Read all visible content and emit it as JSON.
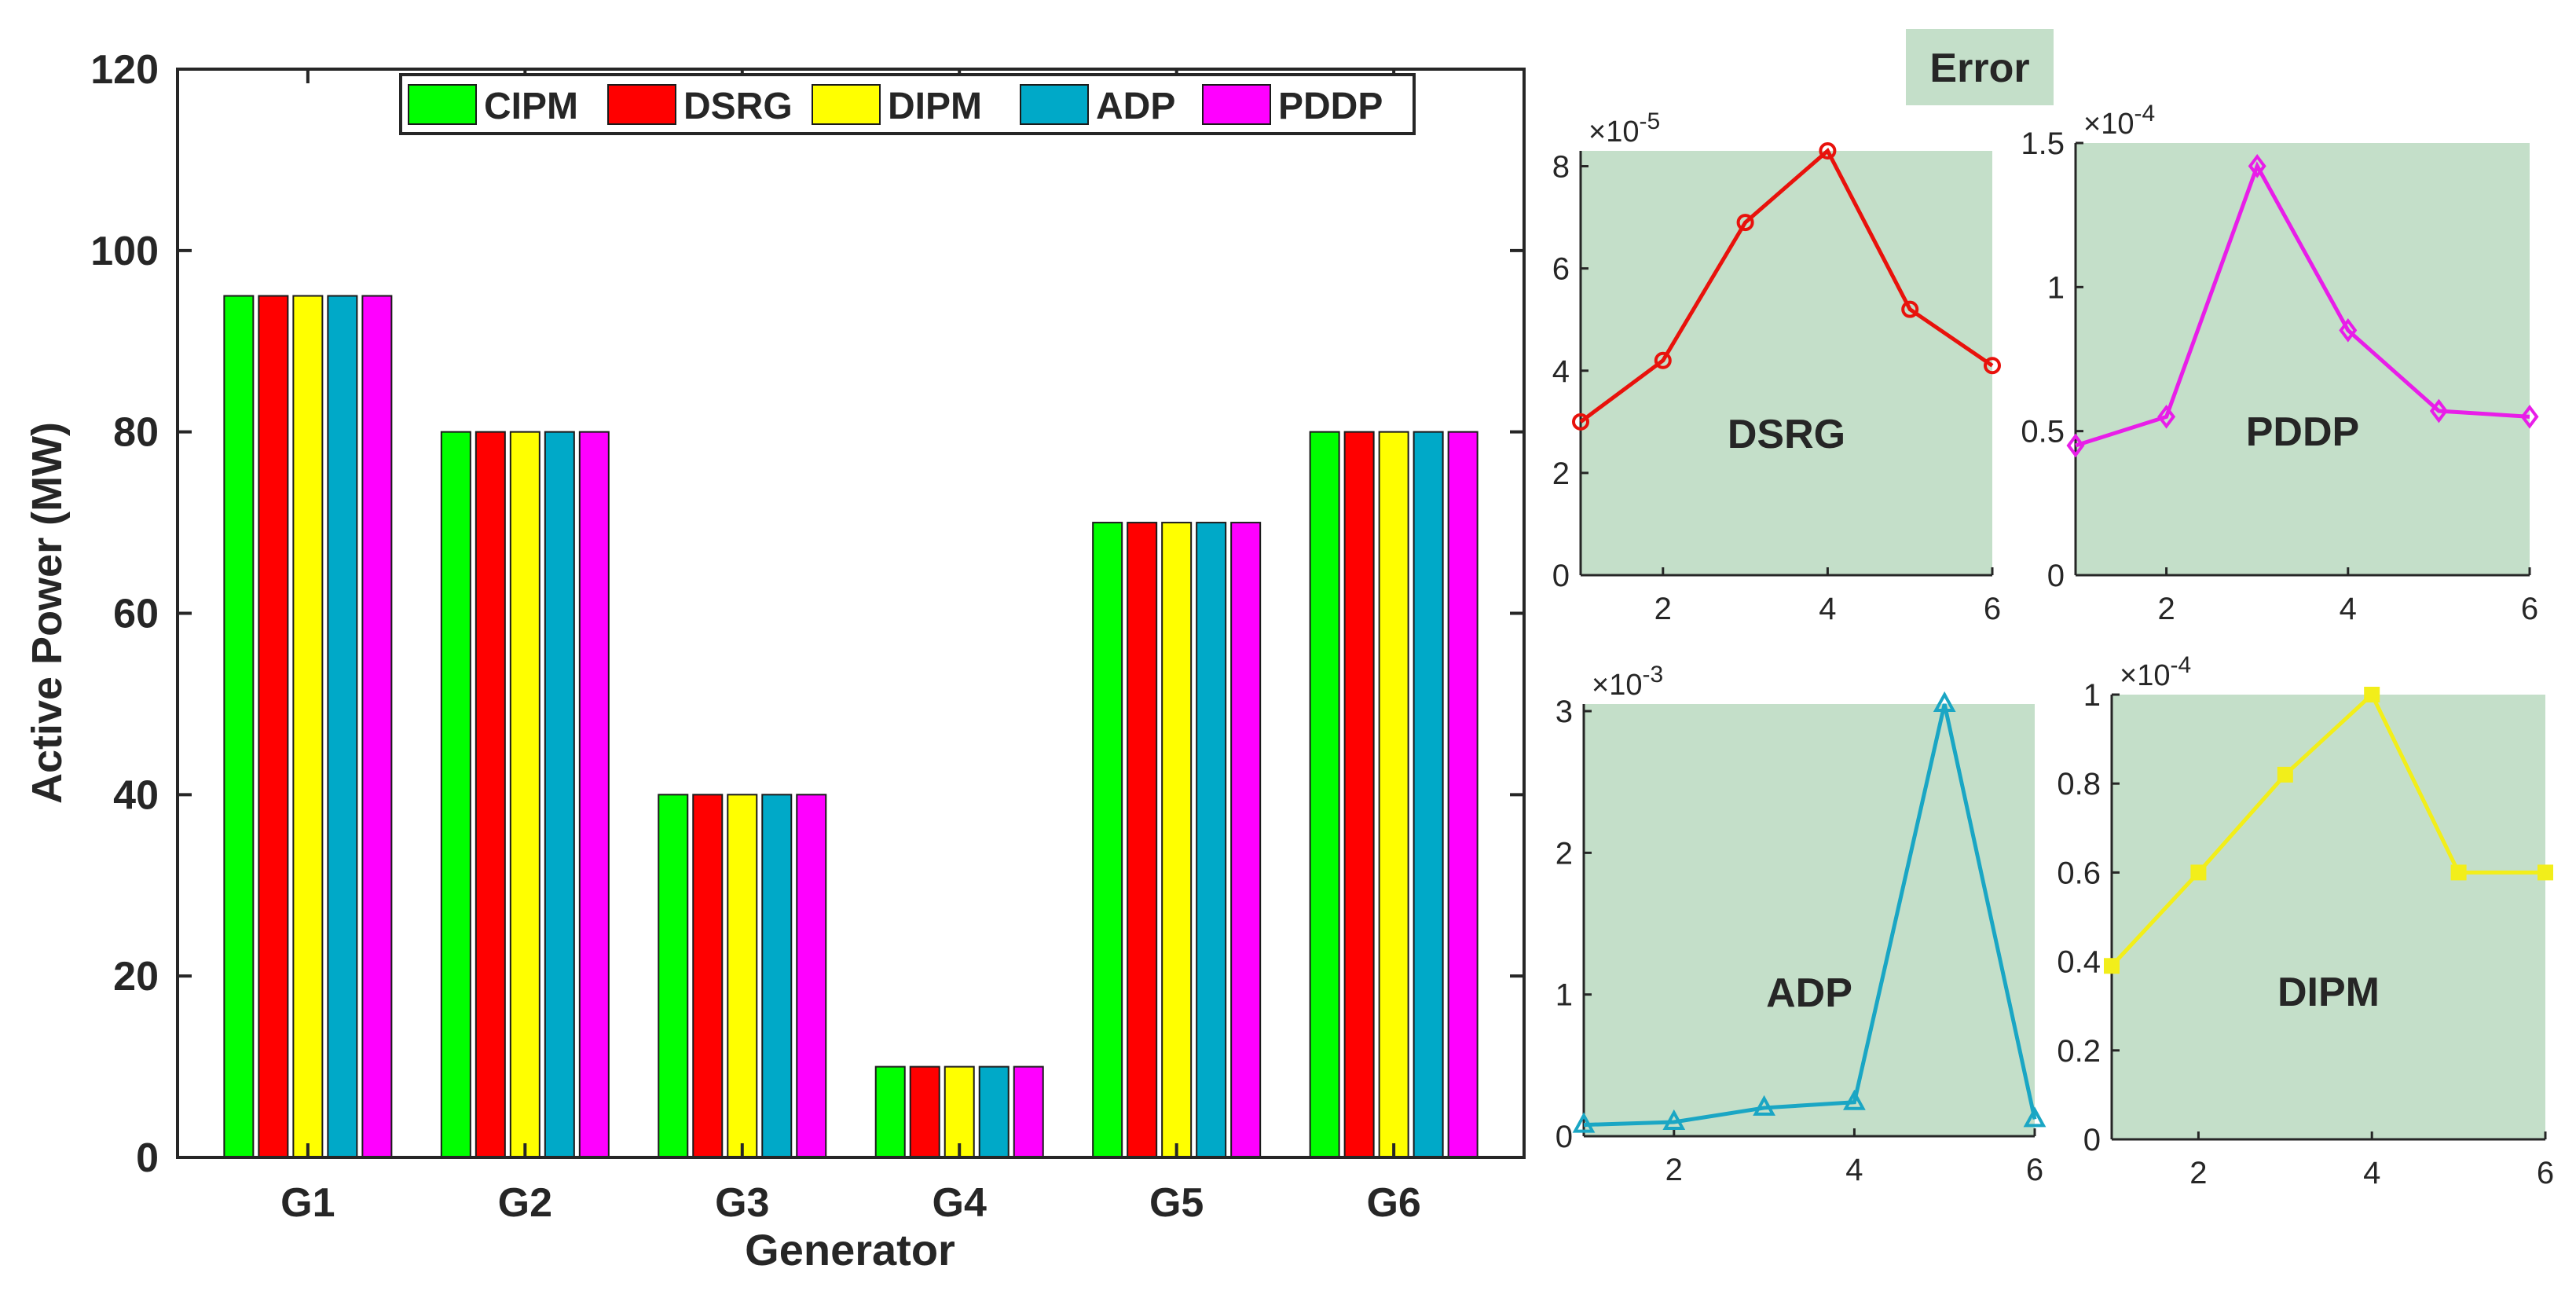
{
  "chart_data": [
    {
      "type": "bar",
      "categories": [
        "G1",
        "G2",
        "G3",
        "G4",
        "G5",
        "G6"
      ],
      "series": [
        {
          "name": "CIPM",
          "color": "#00ff00",
          "values": [
            95,
            80,
            40,
            10,
            70,
            80
          ]
        },
        {
          "name": "DSRG",
          "color": "#ff0000",
          "values": [
            95,
            80,
            40,
            10,
            70,
            80
          ]
        },
        {
          "name": "DIPM",
          "color": "#ffff00",
          "values": [
            95,
            80,
            40,
            10,
            70,
            80
          ]
        },
        {
          "name": "ADP",
          "color": "#00a9c8",
          "values": [
            95,
            80,
            40,
            10,
            70,
            80
          ]
        },
        {
          "name": "PDDP",
          "color": "#ff00ff",
          "values": [
            95,
            80,
            40,
            10,
            70,
            80
          ]
        }
      ],
      "xlabel": "Generator",
      "ylabel": "Active Power (MW)",
      "ylim": [
        0,
        120
      ],
      "yticks": [
        "0",
        "20",
        "40",
        "60",
        "80",
        "100",
        "120"
      ],
      "legend": "top",
      "grid": false
    },
    {
      "type": "line",
      "label": "DSRG",
      "color": "#e8120c",
      "marker": "circle",
      "x": [
        1,
        2,
        3,
        4,
        5,
        6
      ],
      "values": [
        3.0,
        4.2,
        6.9,
        8.3,
        5.2,
        4.1
      ],
      "exponent": "-5",
      "xlim": [
        1,
        6
      ],
      "ylim": [
        0,
        8.3
      ],
      "xticks": [
        "2",
        "4",
        "6"
      ],
      "yticks": [
        "0",
        "2",
        "4",
        "6",
        "8"
      ],
      "background": "#c4dfc9"
    },
    {
      "type": "line",
      "label": "PDDP",
      "color": "#e81ee8",
      "marker": "diamond",
      "x": [
        1,
        2,
        3,
        4,
        5,
        6
      ],
      "values": [
        0.45,
        0.55,
        1.42,
        0.85,
        0.57,
        0.55
      ],
      "exponent": "-4",
      "xlim": [
        1,
        6
      ],
      "ylim": [
        0,
        1.5
      ],
      "xticks": [
        "2",
        "4",
        "6"
      ],
      "yticks": [
        "0",
        "0.5",
        "1",
        "1.5"
      ],
      "background": "#c4dfc9"
    },
    {
      "type": "line",
      "label": "ADP",
      "color": "#1aa6c4",
      "marker": "triangle",
      "x": [
        1,
        2,
        3,
        4,
        5,
        6
      ],
      "values": [
        0.08,
        0.1,
        0.2,
        0.24,
        3.05,
        0.12
      ],
      "exponent": "-3",
      "xlim": [
        1,
        6
      ],
      "ylim": [
        0,
        3.05
      ],
      "xticks": [
        "2",
        "4",
        "6"
      ],
      "yticks": [
        "0",
        "1",
        "2",
        "3"
      ],
      "background": "#c4dfc9"
    },
    {
      "type": "line",
      "label": "DIPM",
      "color": "#f2ee1a",
      "marker": "square",
      "x": [
        1,
        2,
        3,
        4,
        5,
        6
      ],
      "values": [
        0.39,
        0.6,
        0.82,
        1.0,
        0.6,
        0.6
      ],
      "exponent": "-4",
      "xlim": [
        1,
        6
      ],
      "ylim": [
        0,
        1.0
      ],
      "xticks": [
        "2",
        "4",
        "6"
      ],
      "yticks": [
        "0",
        "0.2",
        "0.4",
        "0.6",
        "0.8",
        "1"
      ],
      "background": "#c4dfc9"
    }
  ],
  "error_label": "Error"
}
